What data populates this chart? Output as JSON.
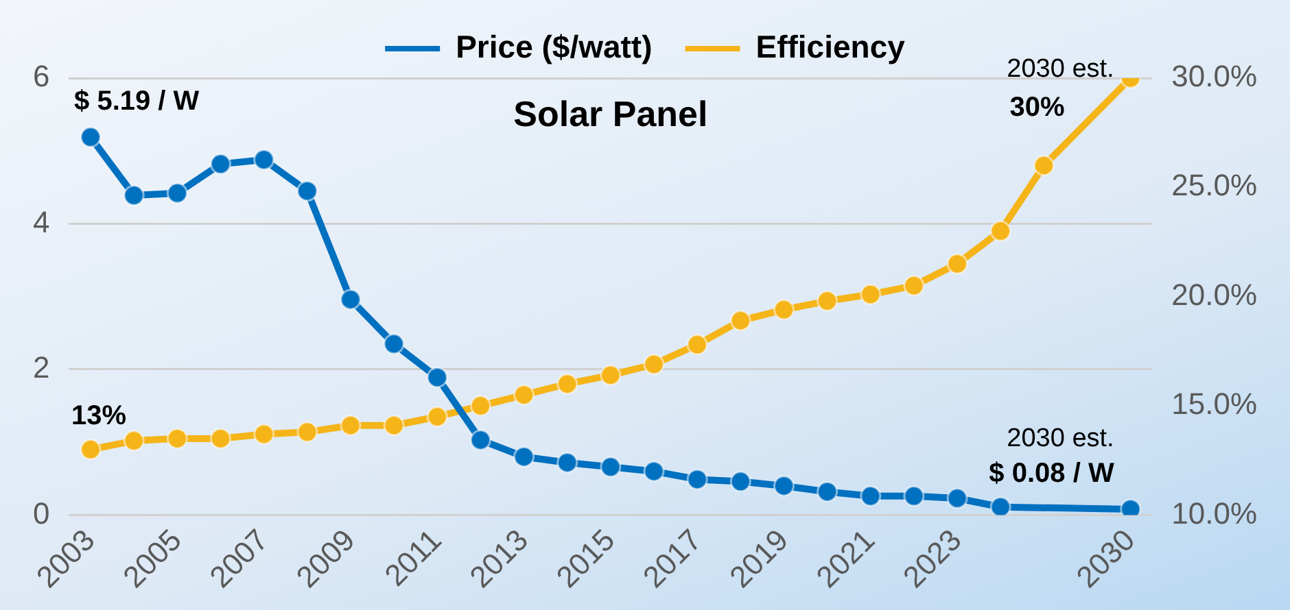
{
  "chart_data": {
    "type": "line",
    "title": "Solar Panel",
    "categories": [
      "2003",
      null,
      "2005",
      null,
      "2007",
      null,
      "2009",
      null,
      "2011",
      null,
      "2013",
      null,
      "2015",
      null,
      "2017",
      null,
      "2019",
      null,
      "2021",
      null,
      "2023",
      null,
      null,
      null,
      "2030"
    ],
    "series": [
      {
        "name": "Price ($/watt)",
        "color": "#0070c0",
        "values": [
          5.19,
          4.39,
          4.42,
          4.82,
          4.88,
          4.45,
          2.96,
          2.35,
          1.89,
          1.03,
          0.8,
          0.72,
          0.66,
          0.6,
          0.49,
          0.46,
          0.4,
          0.32,
          0.26,
          0.26,
          0.23,
          0.11,
          null,
          null,
          0.08
        ]
      },
      {
        "name": "Efficiency",
        "color": "#f5b418",
        "axis": "y2",
        "values": [
          13,
          13.4,
          13.5,
          13.5,
          13.7,
          13.8,
          14.1,
          14.1,
          14.5,
          15.0,
          15.5,
          16.0,
          16.4,
          16.9,
          17.8,
          18.9,
          19.4,
          19.8,
          20.1,
          20.5,
          21.5,
          23.0,
          26.0,
          null,
          30
        ]
      }
    ],
    "ylim": [
      0,
      6
    ],
    "yticks": [
      0,
      2,
      4,
      6
    ],
    "y2lim": [
      10,
      30
    ],
    "y2ticks": [
      {
        "value": 10,
        "label": "10.0%"
      },
      {
        "value": 15,
        "label": "15.0%"
      },
      {
        "value": 20,
        "label": "20.0%"
      },
      {
        "value": 25,
        "label": "25.0%"
      },
      {
        "value": 30,
        "label": "30.0%"
      }
    ],
    "annotations": [
      {
        "text": "$ 5.19 / W",
        "x": "2003",
        "y": 5.19
      },
      "13%",
      "2030 est.\n30%",
      {
        "text": "2030 est.\n$ 0.08 / W",
        "x": "2030",
        "y": 0.08
      }
    ],
    "grid": "y",
    "legend": "top",
    "marker": "circle",
    "line_style": "solid"
  }
}
